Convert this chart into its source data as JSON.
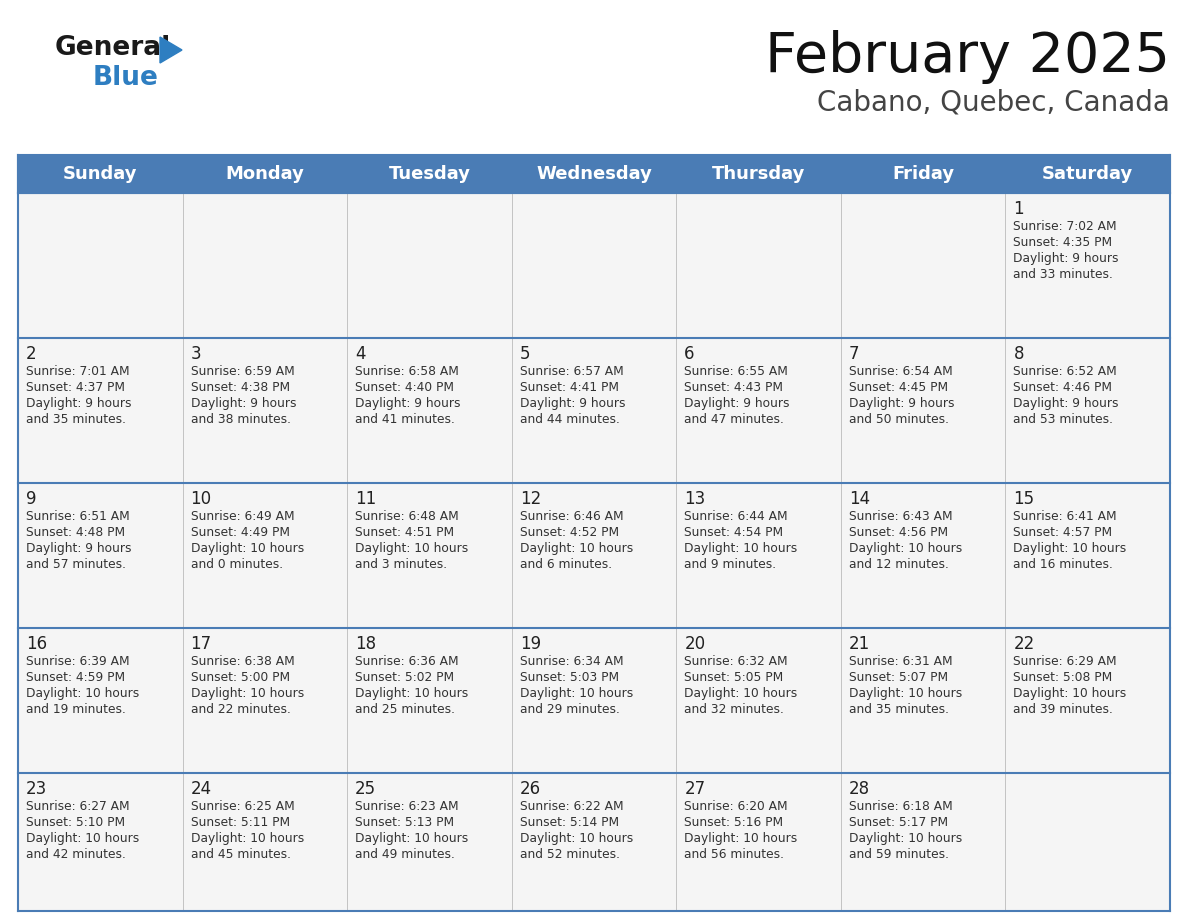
{
  "title": "February 2025",
  "subtitle": "Cabano, Quebec, Canada",
  "header_bg": "#4A7CB5",
  "header_text_color": "#FFFFFF",
  "cell_bg": "#F5F5F5",
  "border_color": "#4A7CB5",
  "text_color": "#333333",
  "days_of_week": [
    "Sunday",
    "Monday",
    "Tuesday",
    "Wednesday",
    "Thursday",
    "Friday",
    "Saturday"
  ],
  "calendar": [
    [
      null,
      null,
      null,
      null,
      null,
      null,
      {
        "day": "1",
        "sunrise": "7:02 AM",
        "sunset": "4:35 PM",
        "daylight": "9 hours\nand 33 minutes."
      }
    ],
    [
      {
        "day": "2",
        "sunrise": "7:01 AM",
        "sunset": "4:37 PM",
        "daylight": "9 hours\nand 35 minutes."
      },
      {
        "day": "3",
        "sunrise": "6:59 AM",
        "sunset": "4:38 PM",
        "daylight": "9 hours\nand 38 minutes."
      },
      {
        "day": "4",
        "sunrise": "6:58 AM",
        "sunset": "4:40 PM",
        "daylight": "9 hours\nand 41 minutes."
      },
      {
        "day": "5",
        "sunrise": "6:57 AM",
        "sunset": "4:41 PM",
        "daylight": "9 hours\nand 44 minutes."
      },
      {
        "day": "6",
        "sunrise": "6:55 AM",
        "sunset": "4:43 PM",
        "daylight": "9 hours\nand 47 minutes."
      },
      {
        "day": "7",
        "sunrise": "6:54 AM",
        "sunset": "4:45 PM",
        "daylight": "9 hours\nand 50 minutes."
      },
      {
        "day": "8",
        "sunrise": "6:52 AM",
        "sunset": "4:46 PM",
        "daylight": "9 hours\nand 53 minutes."
      }
    ],
    [
      {
        "day": "9",
        "sunrise": "6:51 AM",
        "sunset": "4:48 PM",
        "daylight": "9 hours\nand 57 minutes."
      },
      {
        "day": "10",
        "sunrise": "6:49 AM",
        "sunset": "4:49 PM",
        "daylight": "10 hours\nand 0 minutes."
      },
      {
        "day": "11",
        "sunrise": "6:48 AM",
        "sunset": "4:51 PM",
        "daylight": "10 hours\nand 3 minutes."
      },
      {
        "day": "12",
        "sunrise": "6:46 AM",
        "sunset": "4:52 PM",
        "daylight": "10 hours\nand 6 minutes."
      },
      {
        "day": "13",
        "sunrise": "6:44 AM",
        "sunset": "4:54 PM",
        "daylight": "10 hours\nand 9 minutes."
      },
      {
        "day": "14",
        "sunrise": "6:43 AM",
        "sunset": "4:56 PM",
        "daylight": "10 hours\nand 12 minutes."
      },
      {
        "day": "15",
        "sunrise": "6:41 AM",
        "sunset": "4:57 PM",
        "daylight": "10 hours\nand 16 minutes."
      }
    ],
    [
      {
        "day": "16",
        "sunrise": "6:39 AM",
        "sunset": "4:59 PM",
        "daylight": "10 hours\nand 19 minutes."
      },
      {
        "day": "17",
        "sunrise": "6:38 AM",
        "sunset": "5:00 PM",
        "daylight": "10 hours\nand 22 minutes."
      },
      {
        "day": "18",
        "sunrise": "6:36 AM",
        "sunset": "5:02 PM",
        "daylight": "10 hours\nand 25 minutes."
      },
      {
        "day": "19",
        "sunrise": "6:34 AM",
        "sunset": "5:03 PM",
        "daylight": "10 hours\nand 29 minutes."
      },
      {
        "day": "20",
        "sunrise": "6:32 AM",
        "sunset": "5:05 PM",
        "daylight": "10 hours\nand 32 minutes."
      },
      {
        "day": "21",
        "sunrise": "6:31 AM",
        "sunset": "5:07 PM",
        "daylight": "10 hours\nand 35 minutes."
      },
      {
        "day": "22",
        "sunrise": "6:29 AM",
        "sunset": "5:08 PM",
        "daylight": "10 hours\nand 39 minutes."
      }
    ],
    [
      {
        "day": "23",
        "sunrise": "6:27 AM",
        "sunset": "5:10 PM",
        "daylight": "10 hours\nand 42 minutes."
      },
      {
        "day": "24",
        "sunrise": "6:25 AM",
        "sunset": "5:11 PM",
        "daylight": "10 hours\nand 45 minutes."
      },
      {
        "day": "25",
        "sunrise": "6:23 AM",
        "sunset": "5:13 PM",
        "daylight": "10 hours\nand 49 minutes."
      },
      {
        "day": "26",
        "sunrise": "6:22 AM",
        "sunset": "5:14 PM",
        "daylight": "10 hours\nand 52 minutes."
      },
      {
        "day": "27",
        "sunrise": "6:20 AM",
        "sunset": "5:16 PM",
        "daylight": "10 hours\nand 56 minutes."
      },
      {
        "day": "28",
        "sunrise": "6:18 AM",
        "sunset": "5:17 PM",
        "daylight": "10 hours\nand 59 minutes."
      },
      null
    ]
  ],
  "logo_color_general": "#1a1a1a",
  "logo_color_blue": "#2E7EC1",
  "logo_triangle_color": "#2E7EC1"
}
